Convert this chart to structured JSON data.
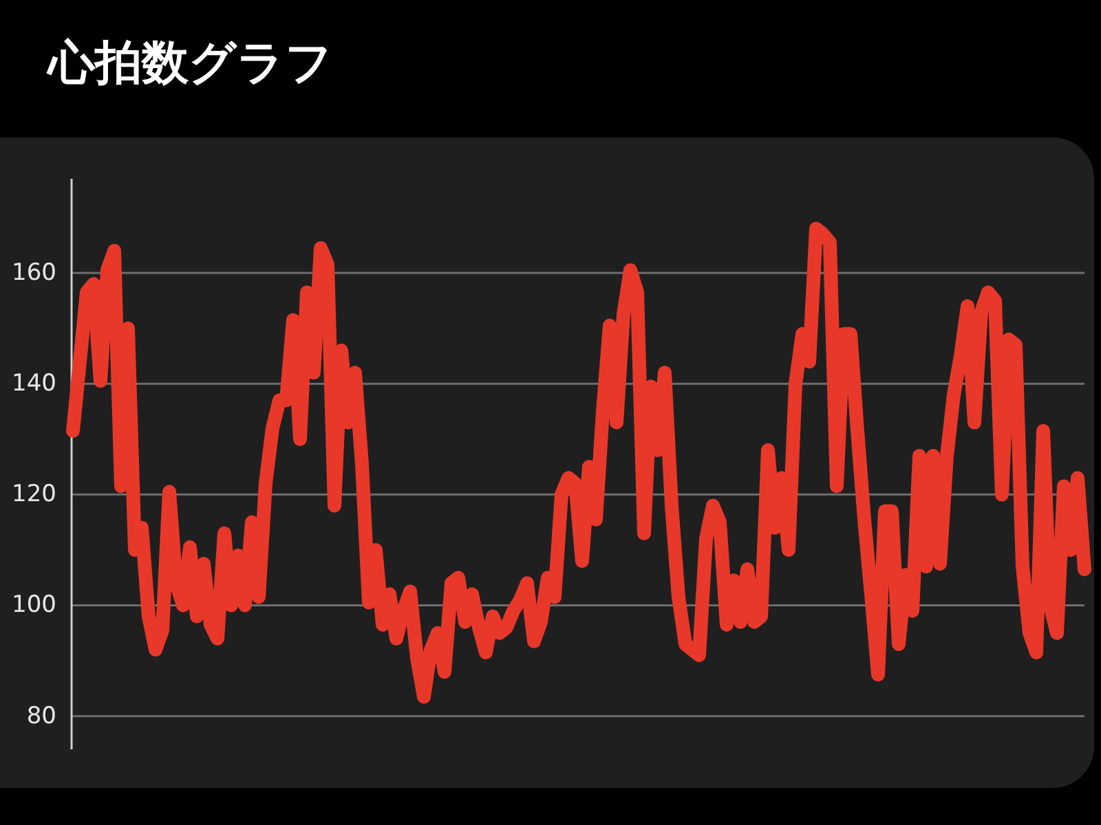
{
  "chart_data": {
    "type": "line",
    "title": "心拍数グラフ",
    "categories": [
      null,
      null,
      null,
      null,
      null,
      null,
      null,
      null,
      null,
      null,
      null,
      null,
      null,
      null,
      null,
      null,
      null,
      null,
      null,
      null,
      null,
      null,
      null,
      null,
      null,
      null,
      null,
      null,
      null,
      null,
      null,
      null,
      null,
      null,
      null,
      null,
      null,
      null,
      null,
      null,
      null,
      null,
      null,
      null,
      null,
      null,
      null,
      null,
      null,
      null,
      null,
      null,
      null,
      null,
      null,
      null,
      null,
      null,
      null,
      null,
      null,
      null,
      null,
      null,
      null,
      null,
      null,
      null,
      null,
      null,
      null,
      null,
      null,
      null,
      null,
      null,
      null,
      null,
      null,
      null,
      null,
      null,
      null,
      null,
      null,
      null,
      null,
      null,
      null,
      null,
      null,
      null,
      null,
      null,
      null,
      null,
      null,
      null,
      null,
      null,
      null,
      null,
      null,
      null,
      null,
      null,
      null,
      null,
      null,
      null,
      null,
      null,
      null,
      null,
      null,
      null,
      null,
      null,
      null,
      null,
      null,
      null,
      null,
      null,
      null,
      null,
      null,
      null,
      null,
      null,
      null,
      null,
      null,
      null,
      null,
      null,
      null,
      null,
      null,
      null,
      null,
      null,
      null,
      null,
      null,
      null,
      null,
      null
    ],
    "series": [
      {
        "color": "#e8382a",
        "values": [
          131.5,
          144,
          156.5,
          158,
          140.5,
          160.5,
          164,
          121.5,
          150,
          110,
          114,
          98,
          92,
          95.5,
          120.5,
          104,
          100,
          110.5,
          98,
          107.5,
          96.5,
          94,
          113,
          100,
          109,
          100,
          115,
          101.5,
          122,
          132,
          137,
          137,
          151.5,
          130,
          156.5,
          142,
          164.5,
          161.5,
          118,
          146,
          133,
          142,
          125.5,
          100.5,
          110,
          96.5,
          102,
          94,
          99,
          102.5,
          90.5,
          83.5,
          92,
          95,
          88,
          104,
          105,
          97,
          102,
          96,
          91.5,
          98,
          95,
          96,
          99,
          101,
          104,
          93.5,
          97,
          105,
          101.5,
          120,
          123,
          122,
          108,
          125,
          115.5,
          135,
          150.5,
          133,
          152.5,
          160.5,
          156.5,
          113,
          139.5,
          128,
          142,
          118,
          101.5,
          93,
          92,
          91,
          112,
          118,
          115,
          96.5,
          104.5,
          97,
          106.5,
          97,
          98,
          128,
          114,
          123,
          110,
          140,
          149,
          144,
          168,
          167,
          165.5,
          121.5,
          149,
          149,
          131.5,
          115.5,
          102,
          87.5,
          117,
          117,
          93,
          105.5,
          99,
          127,
          107,
          127,
          107.5,
          127,
          138,
          145,
          154,
          133,
          153,
          156.5,
          155,
          120,
          148,
          147,
          107,
          95,
          91.5,
          131.5,
          100,
          95,
          121.5,
          110,
          123,
          106.5
        ]
      }
    ],
    "ylim": [
      74,
      177
    ],
    "yticks": [
      80,
      100,
      120,
      140,
      160
    ],
    "grid": "y",
    "tick_labels": "y",
    "line_style": "solid"
  }
}
